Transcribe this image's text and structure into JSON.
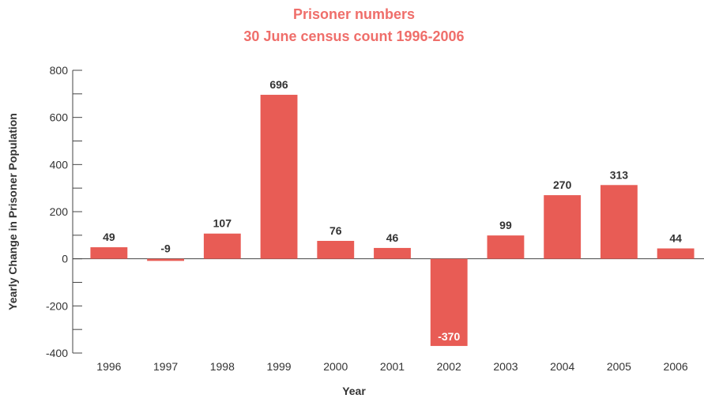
{
  "chart_data": {
    "type": "bar",
    "title": "Prisoner numbers",
    "subtitle": "30 June census count 1996-2006",
    "xlabel": "Year",
    "ylabel": "Yearly Change in Prisoner Population",
    "categories": [
      "1996",
      "1997",
      "1998",
      "1999",
      "2000",
      "2001",
      "2002",
      "2003",
      "2004",
      "2005",
      "2006"
    ],
    "values": [
      49,
      -9,
      107,
      696,
      76,
      46,
      -370,
      99,
      270,
      313,
      44
    ],
    "data_labels": [
      "49",
      "-9",
      "107",
      "696",
      "76",
      "46",
      "-370",
      "99",
      "270",
      "313",
      "44"
    ],
    "ylim": [
      -400,
      800
    ],
    "yticks": [
      -400,
      -200,
      0,
      200,
      400,
      600,
      800
    ],
    "ytick_labels": [
      "-400",
      "-200",
      "0",
      "200",
      "400",
      "600",
      "800"
    ],
    "yminor_step": 100,
    "grid": false,
    "legend": "none",
    "colors": {
      "bar": "#e85c55",
      "title": "#ef6e6a",
      "axis": "#444444",
      "label": "#333333",
      "inside_label": "#ffffff"
    }
  }
}
